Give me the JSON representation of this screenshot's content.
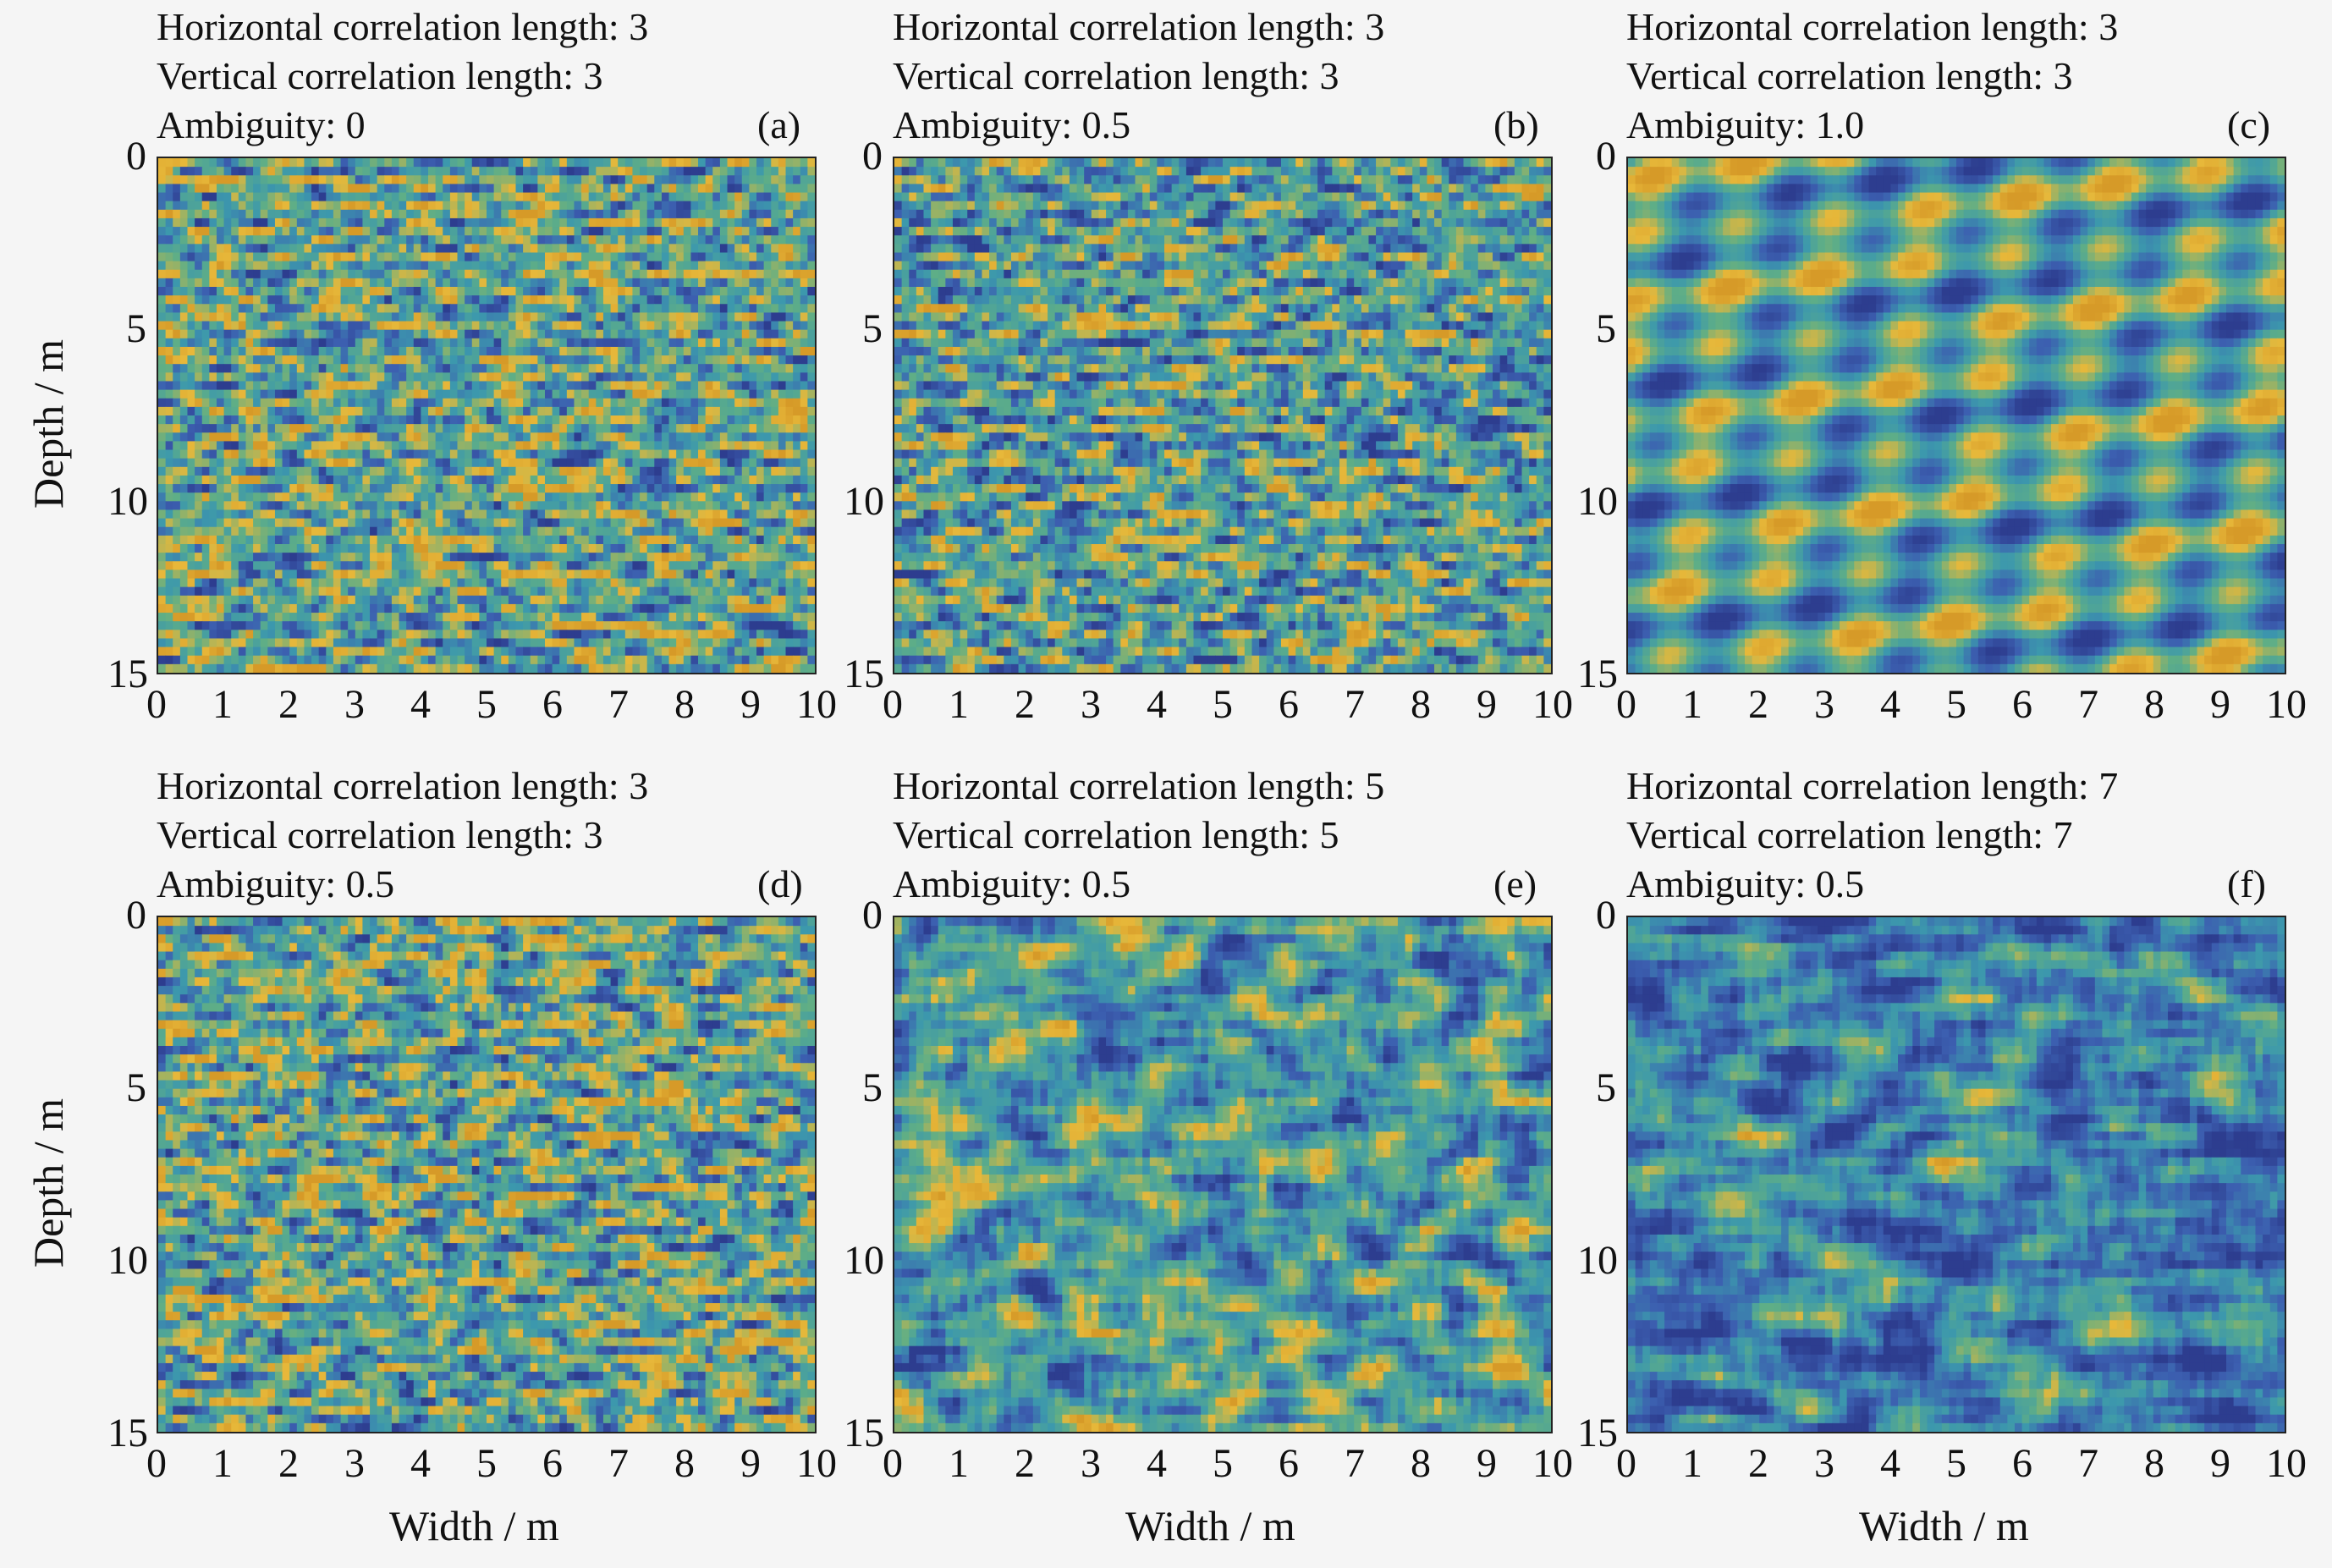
{
  "colors": {
    "blue": "#3c5fb0",
    "dark_blue": "#2d3d8f",
    "teal": "#3c98ad",
    "green": "#5fae86",
    "yellow": "#e7b83a",
    "orange": "#d69a28"
  },
  "chart_data": [
    {
      "type": "heatmap",
      "panel": "(a)",
      "title_lines": [
        "Horizontal correlation length: 3",
        "Vertical correlation length: 3",
        "Ambiguity: 0"
      ],
      "horizontal_correlation_length": 3,
      "vertical_correlation_length": 3,
      "ambiguity": 0,
      "xlabel": "",
      "ylabel": "Depth / m",
      "xlim": [
        0,
        10
      ],
      "ylim": [
        0,
        15
      ],
      "xticks": [
        "0",
        "1",
        "2",
        "3",
        "4",
        "5",
        "6",
        "7",
        "8",
        "9",
        "10"
      ],
      "yticks": [
        "0",
        "5",
        "10",
        "15"
      ],
      "colormap": "parula"
    },
    {
      "type": "heatmap",
      "panel": "(b)",
      "title_lines": [
        "Horizontal correlation length: 3",
        "Vertical correlation length: 3",
        "Ambiguity: 0.5"
      ],
      "horizontal_correlation_length": 3,
      "vertical_correlation_length": 3,
      "ambiguity": 0.5,
      "xlabel": "",
      "ylabel": "",
      "xlim": [
        0,
        10
      ],
      "ylim": [
        0,
        15
      ],
      "xticks": [
        "0",
        "1",
        "2",
        "3",
        "4",
        "5",
        "6",
        "7",
        "8",
        "9",
        "10"
      ],
      "yticks": [
        "0",
        "5",
        "10",
        "15"
      ],
      "colormap": "parula"
    },
    {
      "type": "heatmap",
      "panel": "(c)",
      "title_lines": [
        "Horizontal correlation length: 3",
        "Vertical correlation length: 3",
        "Ambiguity: 1.0"
      ],
      "horizontal_correlation_length": 3,
      "vertical_correlation_length": 3,
      "ambiguity": 1.0,
      "xlabel": "",
      "ylabel": "",
      "xlim": [
        0,
        10
      ],
      "ylim": [
        0,
        15
      ],
      "xticks": [
        "0",
        "1",
        "2",
        "3",
        "4",
        "5",
        "6",
        "7",
        "8",
        "9",
        "10"
      ],
      "yticks": [
        "0",
        "5",
        "10",
        "15"
      ],
      "colormap": "parula"
    },
    {
      "type": "heatmap",
      "panel": "(d)",
      "title_lines": [
        "Horizontal correlation length: 3",
        "Vertical correlation length: 3",
        "Ambiguity: 0.5"
      ],
      "horizontal_correlation_length": 3,
      "vertical_correlation_length": 3,
      "ambiguity": 0.5,
      "xlabel": "Width / m",
      "ylabel": "Depth / m",
      "xlim": [
        0,
        10
      ],
      "ylim": [
        0,
        15
      ],
      "xticks": [
        "0",
        "1",
        "2",
        "3",
        "4",
        "5",
        "6",
        "7",
        "8",
        "9",
        "10"
      ],
      "yticks": [
        "0",
        "5",
        "10",
        "15"
      ],
      "colormap": "parula"
    },
    {
      "type": "heatmap",
      "panel": "(e)",
      "title_lines": [
        "Horizontal correlation length: 5",
        "Vertical correlation length: 5",
        "Ambiguity: 0.5"
      ],
      "horizontal_correlation_length": 5,
      "vertical_correlation_length": 5,
      "ambiguity": 0.5,
      "xlabel": "Width / m",
      "ylabel": "",
      "xlim": [
        0,
        10
      ],
      "ylim": [
        0,
        15
      ],
      "xticks": [
        "0",
        "1",
        "2",
        "3",
        "4",
        "5",
        "6",
        "7",
        "8",
        "9",
        "10"
      ],
      "yticks": [
        "0",
        "5",
        "10",
        "15"
      ],
      "colormap": "parula"
    },
    {
      "type": "heatmap",
      "panel": "(f)",
      "title_lines": [
        "Horizontal correlation length: 7",
        "Vertical correlation length: 7",
        "Ambiguity: 0.5"
      ],
      "horizontal_correlation_length": 7,
      "vertical_correlation_length": 7,
      "ambiguity": 0.5,
      "xlabel": "Width / m",
      "ylabel": "",
      "xlim": [
        0,
        10
      ],
      "ylim": [
        0,
        15
      ],
      "xticks": [
        "0",
        "1",
        "2",
        "3",
        "4",
        "5",
        "6",
        "7",
        "8",
        "9",
        "10"
      ],
      "yticks": [
        "0",
        "5",
        "10",
        "15"
      ],
      "colormap": "parula"
    }
  ]
}
